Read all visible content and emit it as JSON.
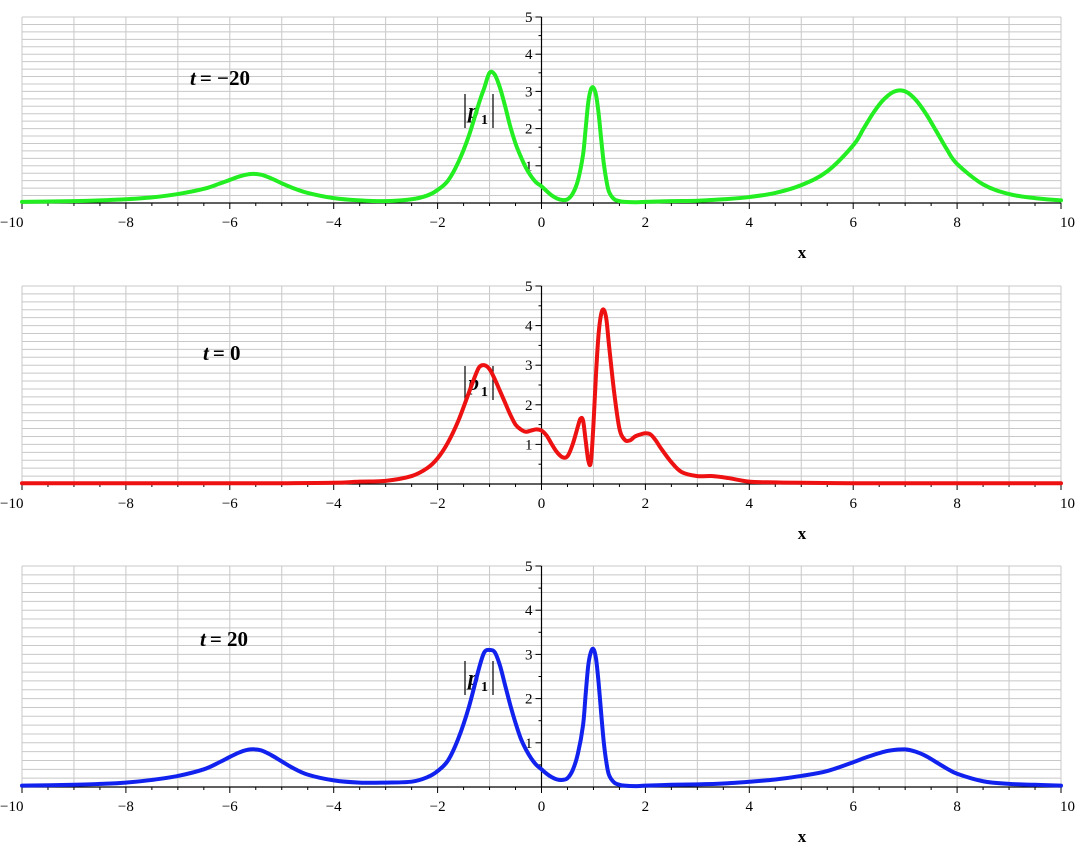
{
  "chart_data": [
    {
      "type": "line",
      "annotation_prefix": "t",
      "annotation_value": "= −20",
      "xlabel": "x",
      "ylabel": "p",
      "ylabel_sub": "1",
      "xlim": [
        -10,
        10
      ],
      "ylim": [
        0,
        5
      ],
      "xticks": [
        "−10",
        "−8",
        "−6",
        "−4",
        "−2",
        "0",
        "2",
        "4",
        "6",
        "8",
        "10"
      ],
      "yticks": [
        "1",
        "2",
        "3",
        "4",
        "5"
      ],
      "grid": true,
      "color": "#22ee22",
      "series": [
        {
          "x": [
            -10,
            -9,
            -8.5,
            -8,
            -7.5,
            -7,
            -6.5,
            -6.2,
            -6,
            -5.8,
            -5.6,
            -5.4,
            -5.2,
            -5,
            -4.8,
            -4.5,
            -4,
            -3.5,
            -3,
            -2.5,
            -2.2,
            -2,
            -1.8,
            -1.6,
            -1.4,
            -1.2,
            -1.1,
            -1,
            -0.9,
            -0.8,
            -0.7,
            -0.6,
            -0.5,
            -0.4,
            -0.3,
            -0.2,
            -0.1,
            0,
            0.1,
            0.2,
            0.3,
            0.4,
            0.5,
            0.6,
            0.7,
            0.8,
            0.85,
            0.9,
            0.95,
            1,
            1.05,
            1.1,
            1.15,
            1.2,
            1.25,
            1.3,
            1.4,
            1.5,
            1.6,
            1.8,
            2,
            2.5,
            3,
            3.5,
            4,
            4.5,
            5,
            5.5,
            6,
            6.2,
            6.4,
            6.6,
            6.8,
            7,
            7.2,
            7.4,
            7.6,
            7.8,
            8,
            8.5,
            9,
            9.5,
            10
          ],
          "y": [
            0.03,
            0.05,
            0.07,
            0.1,
            0.15,
            0.24,
            0.38,
            0.52,
            0.62,
            0.72,
            0.78,
            0.76,
            0.66,
            0.53,
            0.41,
            0.27,
            0.13,
            0.07,
            0.05,
            0.1,
            0.2,
            0.35,
            0.6,
            1.1,
            1.8,
            2.7,
            3.1,
            3.5,
            3.45,
            3.1,
            2.6,
            2.05,
            1.6,
            1.25,
            0.95,
            0.72,
            0.55,
            0.45,
            0.32,
            0.2,
            0.12,
            0.08,
            0.1,
            0.25,
            0.6,
            1.3,
            2,
            2.7,
            3.05,
            3.1,
            2.9,
            2.4,
            1.7,
            1.05,
            0.6,
            0.3,
            0.1,
            0.05,
            0.03,
            0.02,
            0.03,
            0.05,
            0.06,
            0.1,
            0.16,
            0.27,
            0.48,
            0.85,
            1.55,
            2,
            2.45,
            2.8,
            3,
            3,
            2.78,
            2.4,
            1.93,
            1.45,
            1.05,
            0.5,
            0.24,
            0.13,
            0.07
          ]
        }
      ]
    },
    {
      "type": "line",
      "annotation_prefix": "t",
      "annotation_value": "= 0",
      "xlabel": "x",
      "ylabel": "p",
      "ylabel_sub": "1",
      "xlim": [
        -10,
        10
      ],
      "ylim": [
        0,
        5
      ],
      "xticks": [
        "−10",
        "−8",
        "−6",
        "−4",
        "−2",
        "0",
        "2",
        "4",
        "6",
        "8",
        "10"
      ],
      "yticks": [
        "1",
        "2",
        "3",
        "4",
        "5"
      ],
      "grid": true,
      "color": "#ee1111",
      "series": [
        {
          "x": [
            -10,
            -8,
            -6,
            -5,
            -4,
            -3.5,
            -3,
            -2.5,
            -2.2,
            -2,
            -1.8,
            -1.6,
            -1.4,
            -1.3,
            -1.2,
            -1.1,
            -1,
            -0.9,
            -0.8,
            -0.7,
            -0.6,
            -0.5,
            -0.4,
            -0.3,
            -0.2,
            -0.1,
            0,
            0.1,
            0.2,
            0.3,
            0.4,
            0.5,
            0.6,
            0.7,
            0.75,
            0.8,
            0.85,
            0.9,
            0.95,
            1,
            1.05,
            1.1,
            1.15,
            1.2,
            1.25,
            1.3,
            1.4,
            1.5,
            1.6,
            1.7,
            1.8,
            1.9,
            2,
            2.1,
            2.2,
            2.3,
            2.5,
            2.7,
            3,
            3.3,
            3.6,
            4,
            4.5,
            5,
            6,
            7,
            8,
            10
          ],
          "y": [
            0.02,
            0.02,
            0.02,
            0.02,
            0.03,
            0.06,
            0.08,
            0.2,
            0.4,
            0.65,
            1.05,
            1.6,
            2.3,
            2.65,
            2.95,
            3,
            2.9,
            2.65,
            2.35,
            2.05,
            1.75,
            1.5,
            1.38,
            1.32,
            1.35,
            1.38,
            1.35,
            1.22,
            1,
            0.8,
            0.68,
            0.7,
            1,
            1.45,
            1.65,
            1.6,
            1.1,
            0.6,
            0.55,
            1.5,
            2.8,
            3.8,
            4.3,
            4.4,
            4.15,
            3.5,
            2.3,
            1.4,
            1.12,
            1.1,
            1.2,
            1.25,
            1.28,
            1.25,
            1.1,
            0.9,
            0.55,
            0.3,
            0.2,
            0.2,
            0.15,
            0.06,
            0.04,
            0.03,
            0.02,
            0.02,
            0.02,
            0.02
          ]
        }
      ]
    },
    {
      "type": "line",
      "annotation_prefix": "t",
      "annotation_value": "= 20",
      "xlabel": "x",
      "ylabel": "p",
      "ylabel_sub": "1",
      "xlim": [
        -10,
        10
      ],
      "ylim": [
        0,
        5
      ],
      "xticks": [
        "−10",
        "−8",
        "−6",
        "−4",
        "−2",
        "0",
        "2",
        "4",
        "6",
        "8",
        "10"
      ],
      "yticks": [
        "1",
        "2",
        "3",
        "4",
        "5"
      ],
      "grid": true,
      "color": "#1122ee",
      "series": [
        {
          "x": [
            -10,
            -9,
            -8.5,
            -8,
            -7.5,
            -7,
            -6.5,
            -6.2,
            -6,
            -5.8,
            -5.6,
            -5.4,
            -5.2,
            -5,
            -4.8,
            -4.5,
            -4,
            -3.5,
            -3,
            -2.5,
            -2.2,
            -2,
            -1.8,
            -1.6,
            -1.4,
            -1.2,
            -1.1,
            -1,
            -0.9,
            -0.8,
            -0.7,
            -0.6,
            -0.5,
            -0.4,
            -0.3,
            -0.2,
            -0.1,
            0,
            0.1,
            0.2,
            0.3,
            0.4,
            0.5,
            0.6,
            0.7,
            0.8,
            0.85,
            0.9,
            0.95,
            1,
            1.05,
            1.1,
            1.15,
            1.2,
            1.25,
            1.3,
            1.4,
            1.5,
            1.6,
            1.8,
            2,
            2.5,
            3,
            3.5,
            4,
            4.5,
            5,
            5.5,
            6,
            6.2,
            6.4,
            6.6,
            6.8,
            7,
            7.2,
            7.4,
            7.6,
            7.8,
            8,
            8.5,
            9,
            9.5,
            10
          ],
          "y": [
            0.03,
            0.05,
            0.07,
            0.1,
            0.16,
            0.25,
            0.4,
            0.56,
            0.68,
            0.79,
            0.85,
            0.83,
            0.72,
            0.58,
            0.44,
            0.28,
            0.15,
            0.1,
            0.1,
            0.12,
            0.22,
            0.36,
            0.6,
            1.1,
            1.8,
            2.7,
            3.05,
            3.1,
            3.05,
            2.75,
            2.3,
            1.85,
            1.45,
            1.1,
            0.85,
            0.65,
            0.5,
            0.4,
            0.3,
            0.22,
            0.17,
            0.16,
            0.2,
            0.38,
            0.75,
            1.4,
            2.1,
            2.75,
            3.05,
            3.12,
            2.9,
            2.35,
            1.65,
            1,
            0.55,
            0.27,
            0.1,
            0.05,
            0.03,
            0.02,
            0.03,
            0.05,
            0.06,
            0.08,
            0.12,
            0.17,
            0.25,
            0.36,
            0.56,
            0.65,
            0.73,
            0.8,
            0.84,
            0.85,
            0.8,
            0.7,
            0.56,
            0.42,
            0.3,
            0.13,
            0.07,
            0.05,
            0.03
          ]
        }
      ]
    }
  ]
}
